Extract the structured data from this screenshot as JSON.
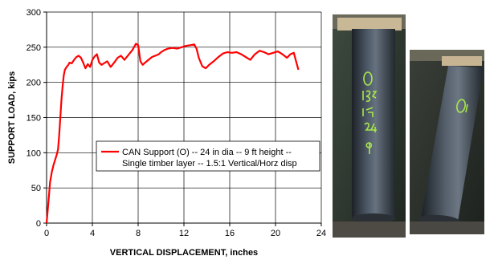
{
  "chart_data": {
    "type": "line",
    "title": "",
    "xlabel": "VERTICAL DISPLACEMENT, inches",
    "ylabel": "SUPPORT LOAD, kips",
    "xlim": [
      0,
      24
    ],
    "ylim": [
      0,
      300
    ],
    "x_ticks": [
      0,
      4,
      8,
      12,
      16,
      20,
      24
    ],
    "y_ticks": [
      0,
      50,
      100,
      150,
      200,
      250,
      300
    ],
    "grid": true,
    "legend_position": "center-right",
    "series": [
      {
        "name": "CAN Support (O) -- 24 in dia -- 9 ft height -- Single timber layer -- 1.5:1 Vertical/Horz disp",
        "legend_lines": [
          "CAN Support (O) -- 24 in dia -- 9 ft height --",
          "Single timber layer -- 1.5:1 Vertical/Horz disp"
        ],
        "color": "#ff0000",
        "points": [
          [
            0,
            0
          ],
          [
            0.1,
            18
          ],
          [
            0.2,
            38
          ],
          [
            0.3,
            58
          ],
          [
            0.45,
            72
          ],
          [
            0.6,
            82
          ],
          [
            0.75,
            90
          ],
          [
            0.9,
            98
          ],
          [
            1.0,
            105
          ],
          [
            1.1,
            125
          ],
          [
            1.2,
            150
          ],
          [
            1.3,
            175
          ],
          [
            1.4,
            195
          ],
          [
            1.5,
            210
          ],
          [
            1.6,
            218
          ],
          [
            1.75,
            222
          ],
          [
            1.9,
            225
          ],
          [
            2.0,
            228
          ],
          [
            2.2,
            227
          ],
          [
            2.4,
            232
          ],
          [
            2.6,
            236
          ],
          [
            2.8,
            238
          ],
          [
            3.0,
            235
          ],
          [
            3.2,
            228
          ],
          [
            3.4,
            220
          ],
          [
            3.6,
            226
          ],
          [
            3.8,
            222
          ],
          [
            4.0,
            232
          ],
          [
            4.2,
            237
          ],
          [
            4.4,
            240
          ],
          [
            4.6,
            228
          ],
          [
            4.8,
            225
          ],
          [
            5.0,
            227
          ],
          [
            5.3,
            230
          ],
          [
            5.6,
            222
          ],
          [
            5.9,
            228
          ],
          [
            6.2,
            235
          ],
          [
            6.5,
            238
          ],
          [
            6.8,
            232
          ],
          [
            7.0,
            236
          ],
          [
            7.2,
            240
          ],
          [
            7.5,
            246
          ],
          [
            7.8,
            255
          ],
          [
            8.0,
            253
          ],
          [
            8.2,
            230
          ],
          [
            8.4,
            225
          ],
          [
            8.6,
            228
          ],
          [
            8.9,
            232
          ],
          [
            9.2,
            236
          ],
          [
            9.5,
            238
          ],
          [
            9.8,
            240
          ],
          [
            10.0,
            243
          ],
          [
            10.3,
            246
          ],
          [
            10.6,
            248
          ],
          [
            11.0,
            249
          ],
          [
            11.4,
            248
          ],
          [
            11.8,
            250
          ],
          [
            12.2,
            252
          ],
          [
            12.6,
            253
          ],
          [
            12.9,
            254
          ],
          [
            13.1,
            248
          ],
          [
            13.3,
            235
          ],
          [
            13.6,
            223
          ],
          [
            13.9,
            220
          ],
          [
            14.2,
            225
          ],
          [
            14.6,
            230
          ],
          [
            15.0,
            236
          ],
          [
            15.4,
            241
          ],
          [
            15.8,
            243
          ],
          [
            16.2,
            242
          ],
          [
            16.6,
            243
          ],
          [
            17.0,
            240
          ],
          [
            17.4,
            236
          ],
          [
            17.8,
            232
          ],
          [
            18.2,
            240
          ],
          [
            18.6,
            245
          ],
          [
            19.0,
            243
          ],
          [
            19.4,
            240
          ],
          [
            19.8,
            242
          ],
          [
            20.2,
            244
          ],
          [
            20.6,
            240
          ],
          [
            21.0,
            235
          ],
          [
            21.3,
            240
          ],
          [
            21.6,
            242
          ],
          [
            21.8,
            230
          ],
          [
            22.0,
            218
          ]
        ]
      }
    ]
  },
  "photos": {
    "left": {
      "number_strokes": [
        "O",
        "15a",
        "1/15",
        "24",
        "9"
      ],
      "ink_color": "#a8e64a"
    },
    "right": {
      "number_strokes": [
        "O"
      ],
      "ink_color": "#a8e64a"
    }
  }
}
